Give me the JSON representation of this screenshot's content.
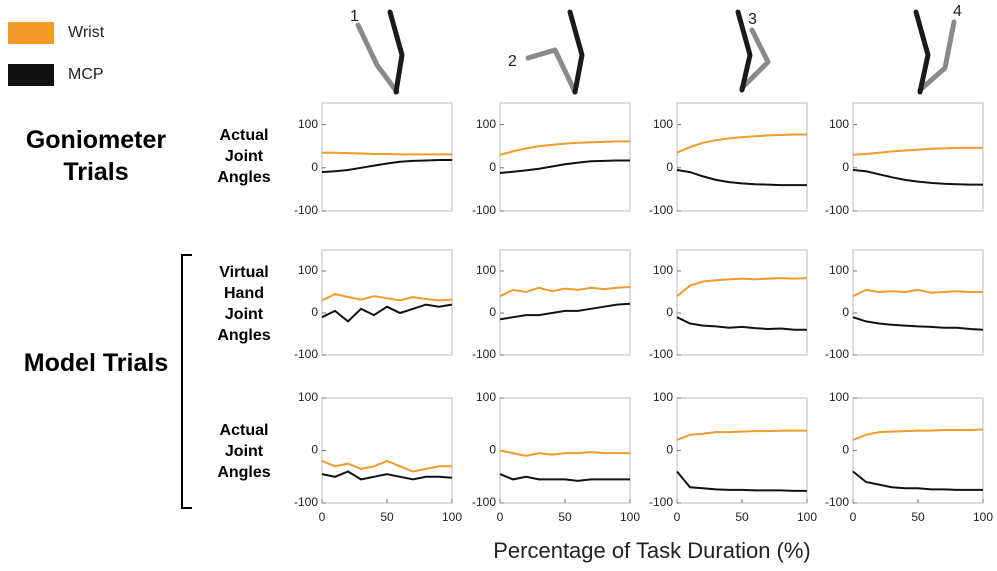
{
  "postures": [
    "1",
    "2",
    "3",
    "4"
  ],
  "groups": [
    "Goniometer Trials",
    "Model Trials"
  ],
  "row_labels": [
    "Actual Joint Angles",
    "Virtual Hand Joint Angles",
    "Actual Joint Angles"
  ],
  "x_label": "Percentage of Task Duration (%)",
  "chart_data": [
    {
      "type": "line",
      "x": [
        0,
        10,
        20,
        30,
        40,
        50,
        60,
        70,
        80,
        90,
        100
      ],
      "xlim": [
        0,
        100
      ],
      "ylim": [
        -100,
        150
      ],
      "yticks": [
        -100,
        0,
        100
      ],
      "series": [
        {
          "name": "Wrist",
          "color": "#f39a2b",
          "values": [
            35,
            35,
            34,
            33,
            32,
            32,
            31,
            31,
            31,
            31,
            31
          ]
        },
        {
          "name": "MCP",
          "color": "#111111",
          "values": [
            -10,
            -8,
            -5,
            0,
            5,
            10,
            14,
            16,
            17,
            18,
            18
          ]
        }
      ]
    },
    {
      "type": "line",
      "x": [
        0,
        10,
        20,
        30,
        40,
        50,
        60,
        70,
        80,
        90,
        100
      ],
      "xlim": [
        0,
        100
      ],
      "ylim": [
        -100,
        150
      ],
      "yticks": [
        -100,
        0,
        100
      ],
      "series": [
        {
          "name": "Wrist",
          "color": "#f39a2b",
          "values": [
            30,
            38,
            45,
            50,
            53,
            56,
            58,
            59,
            60,
            61,
            61
          ]
        },
        {
          "name": "MCP",
          "color": "#111111",
          "values": [
            -12,
            -9,
            -6,
            -2,
            3,
            8,
            12,
            15,
            16,
            17,
            17
          ]
        }
      ]
    },
    {
      "type": "line",
      "x": [
        0,
        10,
        20,
        30,
        40,
        50,
        60,
        70,
        80,
        90,
        100
      ],
      "xlim": [
        0,
        100
      ],
      "ylim": [
        -100,
        150
      ],
      "yticks": [
        -100,
        0,
        100
      ],
      "series": [
        {
          "name": "Wrist",
          "color": "#f39a2b",
          "values": [
            35,
            48,
            58,
            64,
            68,
            71,
            73,
            75,
            76,
            77,
            77
          ]
        },
        {
          "name": "MCP",
          "color": "#111111",
          "values": [
            -5,
            -10,
            -20,
            -28,
            -33,
            -36,
            -38,
            -39,
            -40,
            -40,
            -40
          ]
        }
      ]
    },
    {
      "type": "line",
      "x": [
        0,
        10,
        20,
        30,
        40,
        50,
        60,
        70,
        80,
        90,
        100
      ],
      "xlim": [
        0,
        100
      ],
      "ylim": [
        -100,
        150
      ],
      "yticks": [
        -100,
        0,
        100
      ],
      "series": [
        {
          "name": "Wrist",
          "color": "#f39a2b",
          "values": [
            30,
            32,
            35,
            38,
            40,
            42,
            44,
            45,
            46,
            46,
            46
          ]
        },
        {
          "name": "MCP",
          "color": "#111111",
          "values": [
            -5,
            -8,
            -15,
            -22,
            -28,
            -32,
            -35,
            -37,
            -38,
            -39,
            -39
          ]
        }
      ]
    },
    {
      "type": "line",
      "x": [
        0,
        10,
        20,
        30,
        40,
        50,
        60,
        70,
        80,
        90,
        100
      ],
      "xlim": [
        0,
        100
      ],
      "ylim": [
        -100,
        150
      ],
      "yticks": [
        -100,
        0,
        100
      ],
      "series": [
        {
          "name": "Wrist",
          "color": "#f39a2b",
          "values": [
            30,
            45,
            38,
            32,
            40,
            35,
            30,
            38,
            33,
            30,
            32
          ]
        },
        {
          "name": "MCP",
          "color": "#111111",
          "values": [
            -10,
            5,
            -20,
            10,
            -5,
            15,
            0,
            10,
            20,
            15,
            20
          ]
        }
      ]
    },
    {
      "type": "line",
      "x": [
        0,
        10,
        20,
        30,
        40,
        50,
        60,
        70,
        80,
        90,
        100
      ],
      "xlim": [
        0,
        100
      ],
      "ylim": [
        -100,
        150
      ],
      "yticks": [
        -100,
        0,
        100
      ],
      "series": [
        {
          "name": "Wrist",
          "color": "#f39a2b",
          "values": [
            40,
            55,
            50,
            60,
            52,
            58,
            55,
            60,
            57,
            60,
            62
          ]
        },
        {
          "name": "MCP",
          "color": "#111111",
          "values": [
            -15,
            -10,
            -5,
            -5,
            0,
            5,
            5,
            10,
            15,
            20,
            22
          ]
        }
      ]
    },
    {
      "type": "line",
      "x": [
        0,
        10,
        20,
        30,
        40,
        50,
        60,
        70,
        80,
        90,
        100
      ],
      "xlim": [
        0,
        100
      ],
      "ylim": [
        -100,
        150
      ],
      "yticks": [
        -100,
        0,
        100
      ],
      "series": [
        {
          "name": "Wrist",
          "color": "#f39a2b",
          "values": [
            40,
            65,
            75,
            78,
            80,
            82,
            80,
            82,
            83,
            82,
            83
          ]
        },
        {
          "name": "MCP",
          "color": "#111111",
          "values": [
            -10,
            -25,
            -30,
            -32,
            -35,
            -33,
            -36,
            -38,
            -37,
            -40,
            -40
          ]
        }
      ]
    },
    {
      "type": "line",
      "x": [
        0,
        10,
        20,
        30,
        40,
        50,
        60,
        70,
        80,
        90,
        100
      ],
      "xlim": [
        0,
        100
      ],
      "ylim": [
        -100,
        150
      ],
      "yticks": [
        -100,
        0,
        100
      ],
      "series": [
        {
          "name": "Wrist",
          "color": "#f39a2b",
          "values": [
            40,
            55,
            50,
            52,
            50,
            55,
            48,
            50,
            52,
            50,
            50
          ]
        },
        {
          "name": "MCP",
          "color": "#111111",
          "values": [
            -10,
            -20,
            -25,
            -28,
            -30,
            -32,
            -33,
            -35,
            -35,
            -38,
            -40
          ]
        }
      ]
    },
    {
      "type": "line",
      "x": [
        0,
        10,
        20,
        30,
        40,
        50,
        60,
        70,
        80,
        90,
        100
      ],
      "xlim": [
        0,
        100
      ],
      "ylim": [
        -100,
        100
      ],
      "yticks": [
        -100,
        0,
        100
      ],
      "xticks": [
        0,
        50,
        100
      ],
      "series": [
        {
          "name": "Wrist",
          "color": "#f39a2b",
          "values": [
            -20,
            -30,
            -25,
            -35,
            -30,
            -20,
            -30,
            -40,
            -35,
            -30,
            -30
          ]
        },
        {
          "name": "MCP",
          "color": "#111111",
          "values": [
            -45,
            -50,
            -40,
            -55,
            -50,
            -45,
            -50,
            -55,
            -50,
            -50,
            -52
          ]
        }
      ]
    },
    {
      "type": "line",
      "x": [
        0,
        10,
        20,
        30,
        40,
        50,
        60,
        70,
        80,
        90,
        100
      ],
      "xlim": [
        0,
        100
      ],
      "ylim": [
        -100,
        100
      ],
      "yticks": [
        -100,
        0,
        100
      ],
      "xticks": [
        0,
        50,
        100
      ],
      "series": [
        {
          "name": "Wrist",
          "color": "#f39a2b",
          "values": [
            0,
            -5,
            -10,
            -5,
            -8,
            -5,
            -5,
            -3,
            -5,
            -5,
            -5
          ]
        },
        {
          "name": "MCP",
          "color": "#111111",
          "values": [
            -45,
            -55,
            -50,
            -55,
            -55,
            -55,
            -58,
            -55,
            -55,
            -55,
            -55
          ]
        }
      ]
    },
    {
      "type": "line",
      "x": [
        0,
        10,
        20,
        30,
        40,
        50,
        60,
        70,
        80,
        90,
        100
      ],
      "xlim": [
        0,
        100
      ],
      "ylim": [
        -100,
        100
      ],
      "yticks": [
        -100,
        0,
        100
      ],
      "xticks": [
        0,
        50,
        100
      ],
      "series": [
        {
          "name": "Wrist",
          "color": "#f39a2b",
          "values": [
            20,
            30,
            32,
            35,
            35,
            36,
            37,
            37,
            38,
            38,
            38
          ]
        },
        {
          "name": "MCP",
          "color": "#111111",
          "values": [
            -40,
            -70,
            -72,
            -74,
            -75,
            -75,
            -76,
            -76,
            -76,
            -77,
            -77
          ]
        }
      ]
    },
    {
      "type": "line",
      "x": [
        0,
        10,
        20,
        30,
        40,
        50,
        60,
        70,
        80,
        90,
        100
      ],
      "xlim": [
        0,
        100
      ],
      "ylim": [
        -100,
        100
      ],
      "yticks": [
        -100,
        0,
        100
      ],
      "xticks": [
        0,
        50,
        100
      ],
      "series": [
        {
          "name": "Wrist",
          "color": "#f39a2b",
          "values": [
            20,
            30,
            35,
            36,
            37,
            38,
            38,
            39,
            39,
            39,
            40
          ]
        },
        {
          "name": "MCP",
          "color": "#111111",
          "values": [
            -40,
            -60,
            -65,
            -70,
            -72,
            -72,
            -74,
            -74,
            -75,
            -75,
            -75
          ]
        }
      ]
    }
  ]
}
